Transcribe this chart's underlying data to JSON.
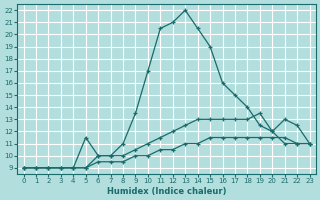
{
  "xlabel": "Humidex (Indice chaleur)",
  "background_color": "#b2dede",
  "grid_color": "#ffffff",
  "line_color": "#1a6b6b",
  "xlim": [
    -0.5,
    23.5
  ],
  "ylim": [
    8.5,
    22.5
  ],
  "xticks": [
    0,
    1,
    2,
    3,
    4,
    5,
    6,
    7,
    8,
    9,
    10,
    11,
    12,
    13,
    14,
    15,
    16,
    17,
    18,
    19,
    20,
    21,
    22,
    23
  ],
  "yticks": [
    9,
    10,
    11,
    12,
    13,
    14,
    15,
    16,
    17,
    18,
    19,
    20,
    21,
    22
  ],
  "line1_x": [
    0,
    1,
    2,
    3,
    4,
    5,
    6,
    7,
    8,
    9,
    10,
    11,
    12,
    13,
    14,
    15,
    16,
    17,
    18,
    19,
    20,
    21,
    22,
    23
  ],
  "line1_y": [
    9,
    9,
    9,
    9,
    9,
    11.5,
    10,
    10,
    11,
    13.5,
    17,
    20.5,
    21,
    22,
    20.5,
    19,
    16,
    15,
    14,
    12.5,
    12,
    11,
    11,
    11
  ],
  "line2_x": [
    0,
    1,
    2,
    3,
    4,
    5,
    6,
    7,
    8,
    9,
    10,
    11,
    12,
    13,
    14,
    15,
    16,
    17,
    18,
    19,
    20,
    21,
    22,
    23
  ],
  "line2_y": [
    9,
    9,
    9,
    9,
    9,
    9,
    10,
    10,
    10,
    10.5,
    11,
    11.5,
    12,
    12.5,
    13,
    13,
    13,
    13,
    13,
    13.5,
    12,
    13,
    12.5,
    11
  ],
  "line3_x": [
    0,
    1,
    2,
    3,
    4,
    5,
    6,
    7,
    8,
    9,
    10,
    11,
    12,
    13,
    14,
    15,
    16,
    17,
    18,
    19,
    20,
    21,
    22,
    23
  ],
  "line3_y": [
    9,
    9,
    9,
    9,
    9,
    9,
    9.5,
    9.5,
    9.5,
    10,
    10,
    10.5,
    10.5,
    11,
    11,
    11.5,
    11.5,
    11.5,
    11.5,
    11.5,
    11.5,
    11.5,
    11,
    11
  ]
}
